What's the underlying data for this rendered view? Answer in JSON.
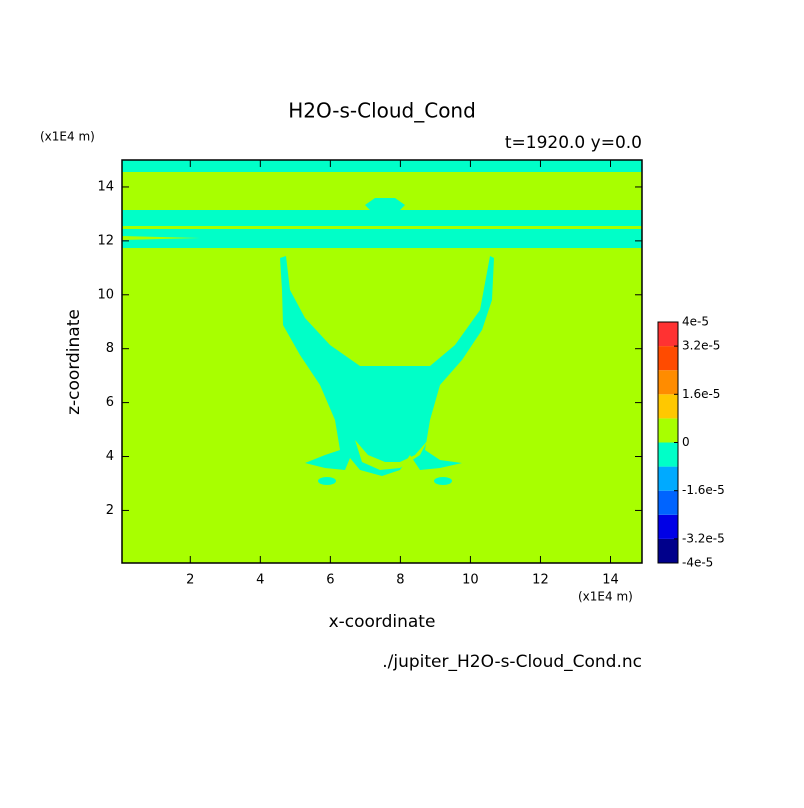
{
  "chart_data": {
    "type": "contour",
    "title": "H2O-s-Cloud_Cond",
    "subtitle": "t=1920.0 y=0.0",
    "x_label": "x-coordinate",
    "y_label": "z-coordinate",
    "x_unit": "(x1E4 m)",
    "y_unit": "(x1E4 m)",
    "footer": "./jupiter_H2O-s-Cloud_Cond.nc",
    "xlim": [
      0.05,
      14.9
    ],
    "ylim": [
      0.05,
      15
    ],
    "xticks": [
      2,
      4,
      6,
      8,
      10,
      12,
      14
    ],
    "yticks": [
      2,
      4,
      6,
      8,
      10,
      12,
      14
    ],
    "colorbar": {
      "levels": [
        -4e-05,
        -3.2e-05,
        -2.4e-05,
        -1.6e-05,
        -8e-06,
        0,
        8e-06,
        1.6e-05,
        2.4e-05,
        3.2e-05,
        4e-05
      ],
      "colors": [
        "#00008b",
        "#0000e6",
        "#0064ff",
        "#00aaff",
        "#00ffc8",
        "#a8ff00",
        "#ffc800",
        "#ff8c00",
        "#ff4b00",
        "#ff3232"
      ],
      "ticks": [
        {
          "value": -4e-05,
          "label": "-4e-5"
        },
        {
          "value": -3.2e-05,
          "label": "-3.2e-5"
        },
        {
          "value": -1.6e-05,
          "label": "-1.6e-5"
        },
        0,
        {
          "value": 1.6e-05,
          "label": "1.6e-5"
        },
        {
          "value": 3.2e-05,
          "label": "3.2e-5"
        },
        {
          "value": 4e-05,
          "label": "4e-5"
        }
      ]
    }
  }
}
